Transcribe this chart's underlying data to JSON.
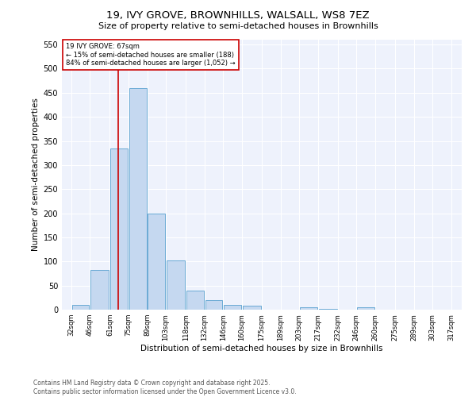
{
  "title1": "19, IVY GROVE, BROWNHILLS, WALSALL, WS8 7EZ",
  "title2": "Size of property relative to semi-detached houses in Brownhills",
  "xlabel": "Distribution of semi-detached houses by size in Brownhills",
  "ylabel": "Number of semi-detached properties",
  "bar_lefts": [
    32,
    46,
    61,
    75,
    89,
    103,
    118,
    132,
    146,
    160,
    175,
    189,
    203,
    217,
    232,
    246,
    260,
    275,
    289,
    303
  ],
  "bar_widths": [
    14,
    15,
    14,
    14,
    14,
    15,
    14,
    14,
    14,
    15,
    14,
    14,
    14,
    15,
    14,
    14,
    15,
    14,
    14,
    14
  ],
  "bar_heights": [
    10,
    83,
    335,
    460,
    200,
    102,
    40,
    20,
    10,
    8,
    0,
    0,
    5,
    2,
    0,
    5,
    0,
    0,
    0,
    0
  ],
  "bar_color": "#c5d8f0",
  "bar_edge_color": "#6aaad4",
  "marker_x": 67,
  "marker_color": "#cc0000",
  "annotation_title": "19 IVY GROVE: 67sqm",
  "annotation_line1": "← 15% of semi-detached houses are smaller (188)",
  "annotation_line2": "84% of semi-detached houses are larger (1,052) →",
  "annotation_box_color": "#cc0000",
  "ylim": [
    0,
    560
  ],
  "yticks": [
    0,
    50,
    100,
    150,
    200,
    250,
    300,
    350,
    400,
    450,
    500,
    550
  ],
  "xlim_left": 25,
  "xlim_right": 325,
  "bg_color": "#eef2fc",
  "footer": "Contains HM Land Registry data © Crown copyright and database right 2025.\nContains public sector information licensed under the Open Government Licence v3.0.",
  "tick_positions": [
    32,
    46,
    61,
    75,
    89,
    103,
    118,
    132,
    146,
    160,
    175,
    189,
    203,
    217,
    232,
    246,
    260,
    275,
    289,
    303,
    317
  ],
  "tick_labels": [
    "32sqm",
    "46sqm",
    "61sqm",
    "75sqm",
    "89sqm",
    "103sqm",
    "118sqm",
    "132sqm",
    "146sqm",
    "160sqm",
    "175sqm",
    "189sqm",
    "203sqm",
    "217sqm",
    "232sqm",
    "246sqm",
    "260sqm",
    "275sqm",
    "289sqm",
    "303sqm",
    "317sqm"
  ]
}
